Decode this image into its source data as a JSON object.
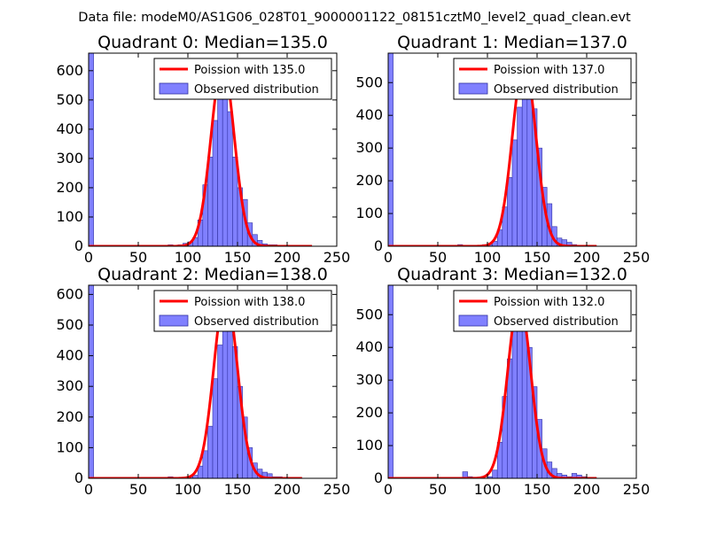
{
  "suptitle": "Data file: modeM0/AS1G06_028T01_9000001122_08151cztM0_level2_quad_clean.evt",
  "colors": {
    "bar_fill": "#8080ff",
    "bar_edge": "#3030a0",
    "poisson_line": "#ff0000",
    "axes": "#000000",
    "legend_edge": "#000000"
  },
  "legend": {
    "poisson_prefix": "Poission with",
    "observed_label": "Observed distribution"
  },
  "chart_data": [
    {
      "type": "bar",
      "title": "Quadrant 0: Median=135.0",
      "median": 135.0,
      "poisson_label": "Poission with 135.0",
      "observed_label": "Observed distribution",
      "xlim": [
        0,
        250
      ],
      "ylim": [
        0,
        660
      ],
      "xticks": [
        0,
        50,
        100,
        150,
        200,
        250
      ],
      "yticks": [
        0,
        100,
        200,
        300,
        400,
        500,
        600
      ],
      "bin_width": 5,
      "zero_bin_value": 660,
      "bins": [
        [
          80,
          5
        ],
        [
          90,
          5
        ],
        [
          95,
          10
        ],
        [
          100,
          15
        ],
        [
          105,
          30
        ],
        [
          110,
          90
        ],
        [
          115,
          210
        ],
        [
          120,
          305
        ],
        [
          125,
          430
        ],
        [
          130,
          525
        ],
        [
          135,
          545
        ],
        [
          140,
          460
        ],
        [
          145,
          305
        ],
        [
          150,
          200
        ],
        [
          155,
          160
        ],
        [
          160,
          80
        ],
        [
          165,
          40
        ],
        [
          170,
          20
        ],
        [
          175,
          8
        ],
        [
          180,
          5
        ],
        [
          185,
          5
        ],
        [
          190,
          2
        ],
        [
          195,
          3
        ],
        [
          200,
          1
        ],
        [
          205,
          1
        ],
        [
          210,
          1
        ],
        [
          215,
          1
        ],
        [
          220,
          1
        ]
      ],
      "curve_peak": 625,
      "curve_range": [
        0,
        225
      ]
    },
    {
      "type": "bar",
      "title": "Quadrant 1: Median=137.0",
      "median": 137.0,
      "poisson_label": "Poission with 137.0",
      "observed_label": "Observed distribution",
      "xlim": [
        0,
        250
      ],
      "ylim": [
        0,
        590
      ],
      "xticks": [
        0,
        50,
        100,
        150,
        200,
        250
      ],
      "yticks": [
        0,
        100,
        200,
        300,
        400,
        500
      ],
      "bin_width": 5,
      "zero_bin_value": 590,
      "bins": [
        [
          70,
          5
        ],
        [
          95,
          5
        ],
        [
          100,
          5
        ],
        [
          105,
          15
        ],
        [
          110,
          50
        ],
        [
          115,
          120
        ],
        [
          120,
          210
        ],
        [
          125,
          325
        ],
        [
          130,
          425
        ],
        [
          135,
          480
        ],
        [
          140,
          470
        ],
        [
          145,
          420
        ],
        [
          150,
          300
        ],
        [
          155,
          180
        ],
        [
          160,
          130
        ],
        [
          165,
          60
        ],
        [
          170,
          25
        ],
        [
          175,
          20
        ],
        [
          180,
          12
        ],
        [
          185,
          5
        ],
        [
          190,
          3
        ],
        [
          195,
          2
        ],
        [
          200,
          1
        ],
        [
          205,
          1
        ]
      ],
      "curve_peak": 565,
      "curve_range": [
        0,
        210
      ]
    },
    {
      "type": "bar",
      "title": "Quadrant 2: Median=138.0",
      "median": 138.0,
      "poisson_label": "Poission with 138.0",
      "observed_label": "Observed distribution",
      "xlim": [
        0,
        250
      ],
      "ylim": [
        0,
        630
      ],
      "xticks": [
        0,
        50,
        100,
        150,
        200,
        250
      ],
      "yticks": [
        0,
        100,
        200,
        300,
        400,
        500,
        600
      ],
      "bin_width": 5,
      "zero_bin_value": 630,
      "bins": [
        [
          80,
          5
        ],
        [
          100,
          5
        ],
        [
          105,
          10
        ],
        [
          110,
          40
        ],
        [
          115,
          90
        ],
        [
          120,
          170
        ],
        [
          125,
          325
        ],
        [
          130,
          435
        ],
        [
          135,
          555
        ],
        [
          140,
          530
        ],
        [
          145,
          430
        ],
        [
          150,
          300
        ],
        [
          155,
          200
        ],
        [
          160,
          100
        ],
        [
          165,
          50
        ],
        [
          170,
          30
        ],
        [
          175,
          20
        ],
        [
          180,
          15
        ],
        [
          185,
          5
        ],
        [
          190,
          5
        ],
        [
          195,
          3
        ],
        [
          200,
          2
        ],
        [
          205,
          1
        ],
        [
          210,
          1
        ]
      ],
      "curve_peak": 605,
      "curve_range": [
        0,
        215
      ]
    },
    {
      "type": "bar",
      "title": "Quadrant 3: Median=132.0",
      "median": 132.0,
      "poisson_label": "Poission with 132.0",
      "observed_label": "Observed distribution",
      "xlim": [
        0,
        250
      ],
      "ylim": [
        0,
        590
      ],
      "xticks": [
        0,
        50,
        100,
        150,
        200,
        250
      ],
      "yticks": [
        0,
        100,
        200,
        300,
        400,
        500
      ],
      "bin_width": 5,
      "zero_bin_value": 590,
      "bins": [
        [
          75,
          20
        ],
        [
          80,
          5
        ],
        [
          100,
          5
        ],
        [
          105,
          25
        ],
        [
          110,
          110
        ],
        [
          115,
          250
        ],
        [
          120,
          365
        ],
        [
          125,
          470
        ],
        [
          130,
          545
        ],
        [
          135,
          525
        ],
        [
          140,
          400
        ],
        [
          145,
          280
        ],
        [
          150,
          180
        ],
        [
          155,
          90
        ],
        [
          160,
          50
        ],
        [
          165,
          30
        ],
        [
          170,
          15
        ],
        [
          175,
          10
        ],
        [
          180,
          5
        ],
        [
          185,
          15
        ],
        [
          190,
          10
        ],
        [
          195,
          5
        ],
        [
          200,
          3
        ],
        [
          205,
          1
        ]
      ],
      "curve_peak": 545,
      "curve_range": [
        0,
        210
      ]
    }
  ]
}
